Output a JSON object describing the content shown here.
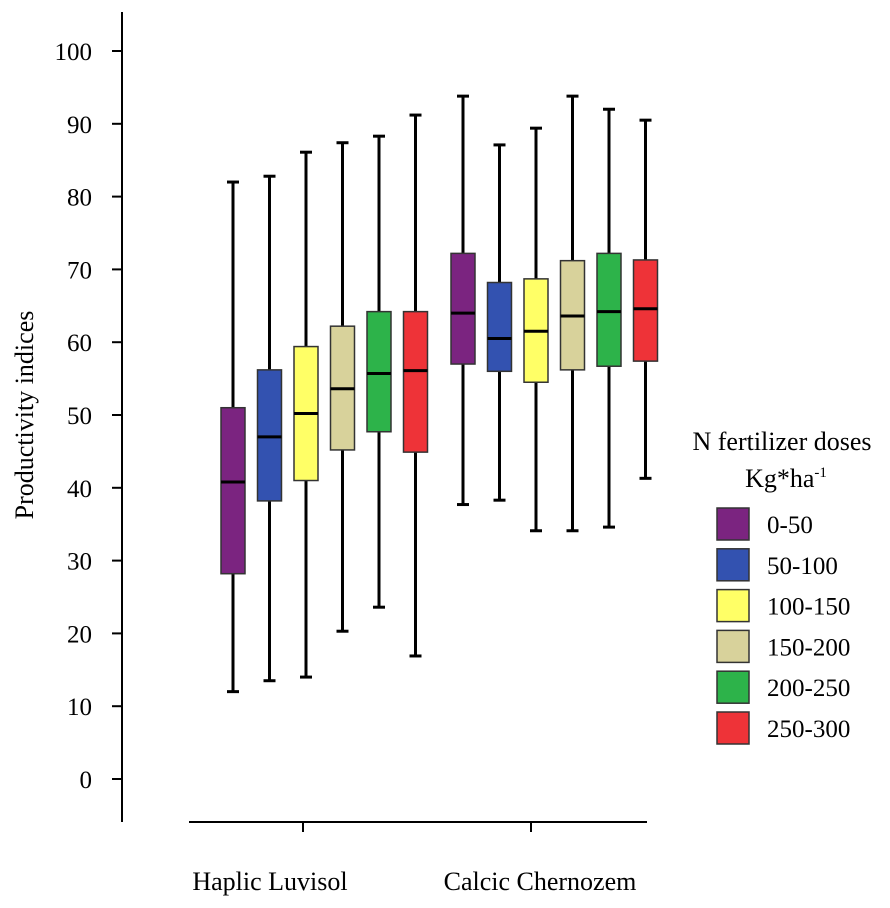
{
  "chart_data": {
    "type": "boxplot",
    "title": "",
    "ylabel": "Productivity indices",
    "xlabel": "",
    "ylim": [
      0,
      100
    ],
    "yticks": [
      "0",
      "10",
      "20",
      "30",
      "40",
      "50",
      "60",
      "70",
      "80",
      "90",
      "100"
    ],
    "categories": [
      "Haplic Luvisol",
      "Calcic Chernozem"
    ],
    "legend": {
      "title_line1": "N fertilizer doses",
      "title_line2_base": "Kg*ha",
      "title_line2_sup": "-1",
      "placement": "right"
    },
    "series": [
      {
        "name": "0-50",
        "color": "#7b2480",
        "boxes": [
          {
            "min": 12,
            "q1": 28.2,
            "median": 40.8,
            "q3": 51,
            "max": 82
          },
          {
            "min": 37.7,
            "q1": 57,
            "median": 64,
            "q3": 72.2,
            "max": 93.8
          }
        ]
      },
      {
        "name": "50-100",
        "color": "#3352b0",
        "boxes": [
          {
            "min": 13.5,
            "q1": 38.2,
            "median": 47,
            "q3": 56.2,
            "max": 82.8
          },
          {
            "min": 38.3,
            "q1": 56,
            "median": 60.5,
            "q3": 68.2,
            "max": 87.1
          }
        ]
      },
      {
        "name": "100-150",
        "color": "#ffff66",
        "boxes": [
          {
            "min": 14,
            "q1": 41,
            "median": 50.2,
            "q3": 59.4,
            "max": 86.1
          },
          {
            "min": 34.1,
            "q1": 54.5,
            "median": 61.5,
            "q3": 68.7,
            "max": 89.4
          }
        ]
      },
      {
        "name": "150-200",
        "color": "#d8d29b",
        "boxes": [
          {
            "min": 20.3,
            "q1": 45.2,
            "median": 53.6,
            "q3": 62.2,
            "max": 87.4
          },
          {
            "min": 34.1,
            "q1": 56.2,
            "median": 63.6,
            "q3": 71.2,
            "max": 93.8
          }
        ]
      },
      {
        "name": "200-250",
        "color": "#2db34a",
        "boxes": [
          {
            "min": 23.6,
            "q1": 47.7,
            "median": 55.7,
            "q3": 64.2,
            "max": 88.3
          },
          {
            "min": 34.6,
            "q1": 56.7,
            "median": 64.2,
            "q3": 72.2,
            "max": 92
          }
        ]
      },
      {
        "name": "250-300",
        "color": "#ee3338",
        "boxes": [
          {
            "min": 16.9,
            "q1": 44.9,
            "median": 56.1,
            "q3": 64.2,
            "max": 91.2
          },
          {
            "min": 41.3,
            "q1": 57.4,
            "median": 64.6,
            "q3": 71.3,
            "max": 90.5
          }
        ]
      }
    ]
  }
}
